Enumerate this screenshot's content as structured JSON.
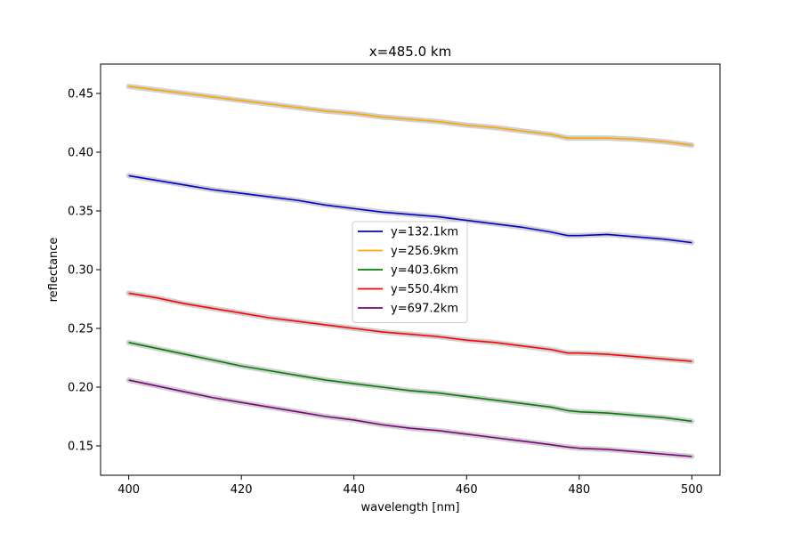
{
  "chart_data": {
    "type": "line",
    "title": "x=485.0 km",
    "xlabel": "wavelength [nm]",
    "ylabel": "reflectance",
    "xlim": [
      395,
      505
    ],
    "ylim": [
      0.125,
      0.475
    ],
    "xticks": [
      400,
      420,
      440,
      460,
      480,
      500
    ],
    "yticks": [
      0.15,
      0.2,
      0.25,
      0.3,
      0.35,
      0.4,
      0.45
    ],
    "grid": false,
    "legend_position": "center",
    "band_color": "#c0c0c0",
    "series": [
      {
        "name": "y=132.1km",
        "color": "#0000cc",
        "x": [
          400,
          405,
          410,
          415,
          420,
          425,
          430,
          435,
          440,
          445,
          450,
          455,
          460,
          465,
          470,
          475,
          478,
          480,
          485,
          490,
          495,
          500
        ],
        "y": [
          0.38,
          0.376,
          0.372,
          0.368,
          0.365,
          0.362,
          0.359,
          0.355,
          0.352,
          0.349,
          0.347,
          0.345,
          0.342,
          0.339,
          0.336,
          0.332,
          0.329,
          0.329,
          0.33,
          0.328,
          0.326,
          0.323
        ]
      },
      {
        "name": "y=256.9km",
        "color": "#ffa500",
        "x": [
          400,
          405,
          410,
          415,
          420,
          425,
          430,
          435,
          440,
          445,
          450,
          455,
          460,
          465,
          470,
          475,
          478,
          480,
          485,
          490,
          495,
          500
        ],
        "y": [
          0.456,
          0.453,
          0.45,
          0.447,
          0.444,
          0.441,
          0.438,
          0.435,
          0.433,
          0.43,
          0.428,
          0.426,
          0.423,
          0.421,
          0.418,
          0.415,
          0.412,
          0.412,
          0.412,
          0.411,
          0.409,
          0.406
        ]
      },
      {
        "name": "y=403.6km",
        "color": "#008000",
        "x": [
          400,
          405,
          410,
          415,
          420,
          425,
          430,
          435,
          440,
          445,
          450,
          455,
          460,
          465,
          470,
          475,
          478,
          480,
          485,
          490,
          495,
          500
        ],
        "y": [
          0.238,
          0.233,
          0.228,
          0.223,
          0.218,
          0.214,
          0.21,
          0.206,
          0.203,
          0.2,
          0.197,
          0.195,
          0.192,
          0.189,
          0.186,
          0.183,
          0.18,
          0.179,
          0.178,
          0.176,
          0.174,
          0.171
        ]
      },
      {
        "name": "y=550.4km",
        "color": "#ff0000",
        "x": [
          400,
          405,
          410,
          415,
          420,
          425,
          430,
          435,
          440,
          445,
          450,
          455,
          460,
          465,
          470,
          475,
          478,
          480,
          485,
          490,
          495,
          500
        ],
        "y": [
          0.28,
          0.276,
          0.271,
          0.267,
          0.263,
          0.259,
          0.256,
          0.253,
          0.25,
          0.247,
          0.245,
          0.243,
          0.24,
          0.238,
          0.235,
          0.232,
          0.229,
          0.229,
          0.228,
          0.226,
          0.224,
          0.222
        ]
      },
      {
        "name": "y=697.2km",
        "color": "#800080",
        "x": [
          400,
          405,
          410,
          415,
          420,
          425,
          430,
          435,
          440,
          445,
          450,
          455,
          460,
          465,
          470,
          475,
          478,
          480,
          485,
          490,
          495,
          500
        ],
        "y": [
          0.206,
          0.201,
          0.196,
          0.191,
          0.187,
          0.183,
          0.179,
          0.175,
          0.172,
          0.168,
          0.165,
          0.163,
          0.16,
          0.157,
          0.154,
          0.151,
          0.149,
          0.148,
          0.147,
          0.145,
          0.143,
          0.141
        ]
      }
    ]
  }
}
